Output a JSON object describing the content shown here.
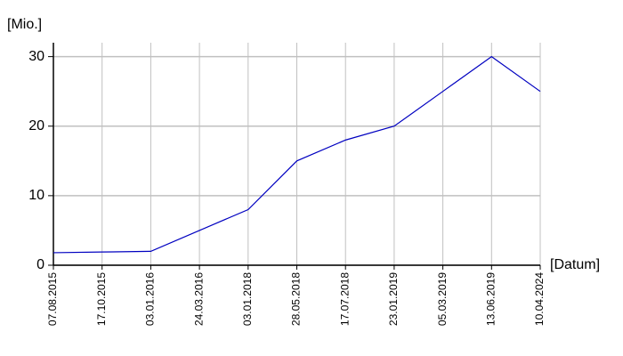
{
  "chart_data": {
    "type": "line",
    "y_label": "[Mio.]",
    "x_label": "[Datum]",
    "categories": [
      "07.08.2015",
      "17.10.2015",
      "03.01.2016",
      "24.03.2016",
      "03.01.2018",
      "28.05.2018",
      "17.07.2018",
      "23.01.2019",
      "05.03.2019",
      "13.06.2019",
      "10.04.2024"
    ],
    "series": [
      {
        "color": "#0000c0",
        "values": [
          1.8,
          1.9,
          2.0,
          5,
          8,
          15,
          18,
          20,
          25,
          30,
          25
        ]
      }
    ],
    "ylim": [
      0,
      32
    ],
    "yticks": [
      0,
      10,
      20,
      30
    ],
    "grid": true
  }
}
